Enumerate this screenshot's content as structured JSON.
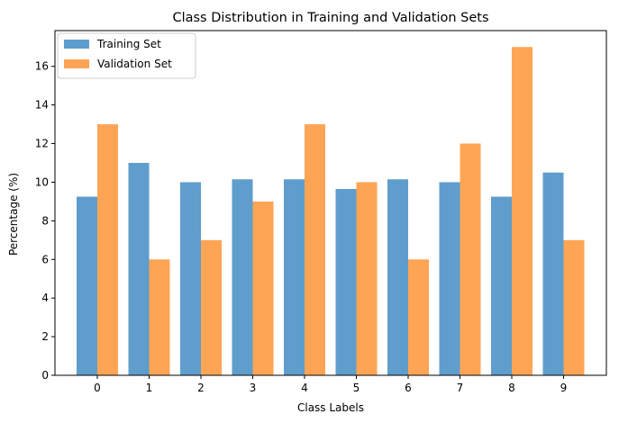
{
  "chart_data": {
    "type": "bar",
    "title": "Class Distribution in Training and Validation Sets",
    "xlabel": "Class Labels",
    "ylabel": "Percentage (%)",
    "categories": [
      "0",
      "1",
      "2",
      "3",
      "4",
      "5",
      "6",
      "7",
      "8",
      "9"
    ],
    "series": [
      {
        "name": "Training Set",
        "color": "#5f9ecc",
        "values": [
          9.25,
          11.0,
          10.0,
          10.15,
          10.15,
          9.65,
          10.15,
          10.0,
          9.25,
          10.5
        ]
      },
      {
        "name": "Validation Set",
        "color": "#fea455",
        "values": [
          13.0,
          6.0,
          7.0,
          9.0,
          13.0,
          10.0,
          6.0,
          12.0,
          17.0,
          7.0
        ]
      }
    ],
    "ylim": [
      0,
      17.85
    ],
    "yticks": [
      0,
      2,
      4,
      6,
      8,
      10,
      12,
      14,
      16
    ],
    "grid": false,
    "legend": "top-left"
  }
}
